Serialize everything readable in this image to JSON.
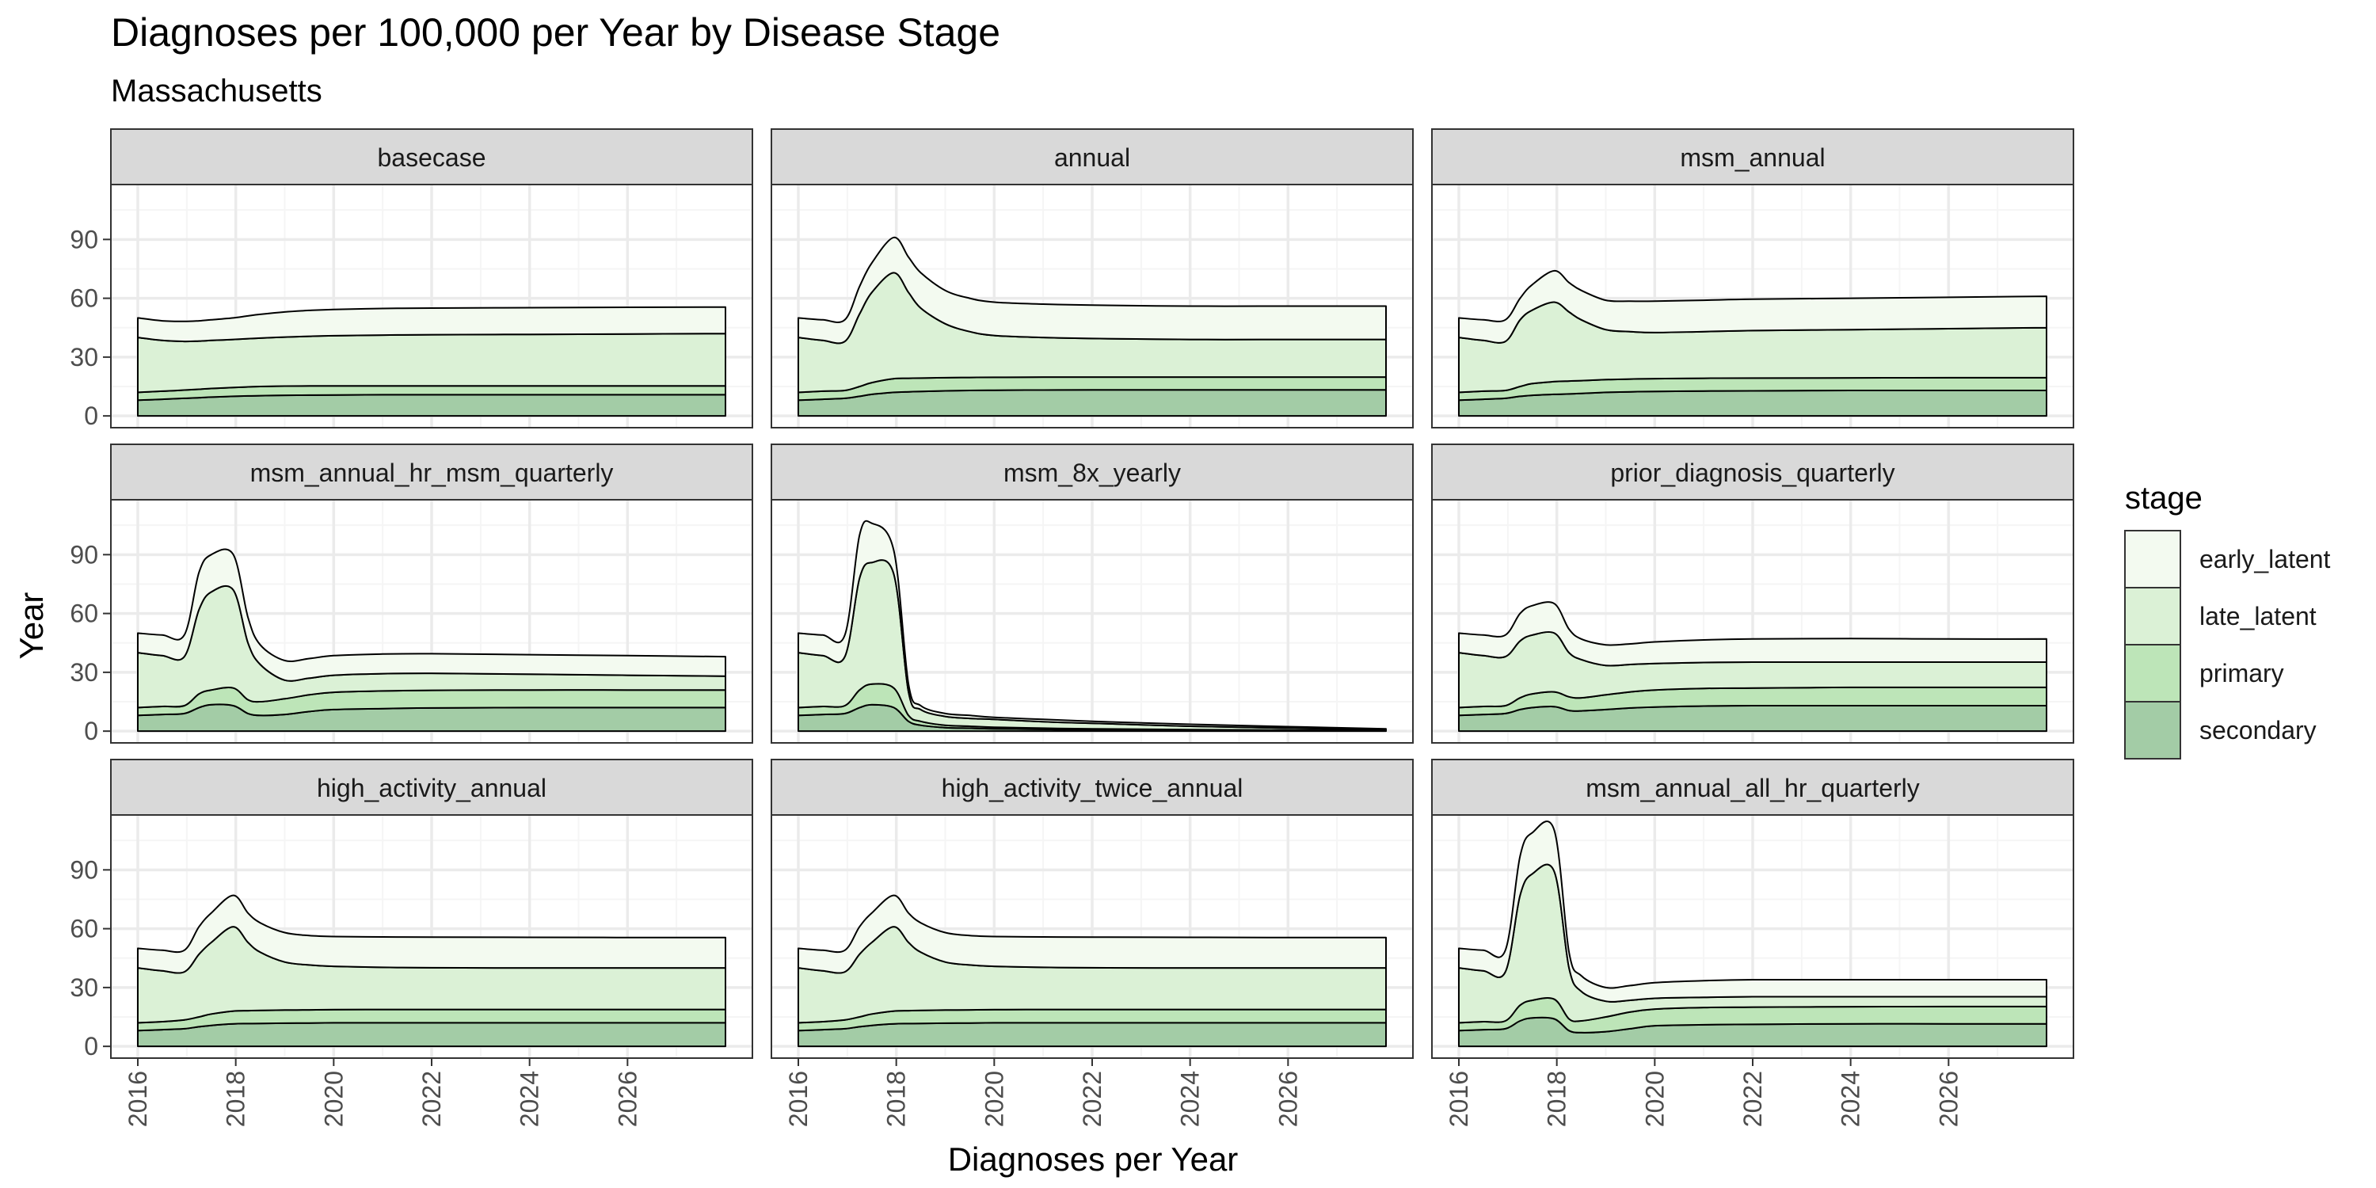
{
  "colors": {
    "early_latent": "#f3faf0",
    "late_latent": "#dbf1d6",
    "primary": "#bde5b8",
    "secondary": "#a3cca6",
    "strip_bg": "#d9d9d9",
    "grid_major": "#ebebeb",
    "grid_minor": "#f5f5f5",
    "outline": "#000000",
    "tick_text": "#4d4d4d"
  },
  "chart_data": {
    "type": "area",
    "stacked": true,
    "title": "Diagnoses per 100,000 per Year by Disease Stage",
    "subtitle": "Massachusetts",
    "xlabel": "Diagnoses per Year",
    "ylabel": "Year",
    "xlim": [
      2015.45,
      2028.55
    ],
    "ylim": [
      -6,
      118
    ],
    "x_ticks": [
      2016,
      2018,
      2020,
      2022,
      2024,
      2026
    ],
    "x_tick_labels": [
      "2016",
      "2018",
      "2020",
      "2022",
      "2024",
      "2026"
    ],
    "y_ticks": [
      0,
      30,
      60,
      90
    ],
    "y_tick_labels": [
      "0",
      "30",
      "60",
      "90"
    ],
    "grid": true,
    "legend": {
      "title": "stage",
      "position": "right",
      "entries": [
        "early_latent",
        "late_latent",
        "primary",
        "secondary"
      ]
    },
    "stack_order_bottom_to_top": [
      "secondary",
      "primary",
      "late_latent",
      "early_latent"
    ],
    "x": [
      2016,
      2016.5,
      2016.95,
      2017.25,
      2017.5,
      2017.95,
      2018.25,
      2018.5,
      2019,
      2019.5,
      2020,
      2021,
      2022,
      2024,
      2026,
      2028
    ],
    "panels": [
      {
        "title": "basecase",
        "cumulative": {
          "secondary": [
            8,
            8.5,
            9,
            9.3,
            9.6,
            10,
            10.2,
            10.3,
            10.5,
            10.6,
            10.7,
            10.8,
            10.8,
            10.8,
            10.8,
            10.8
          ],
          "primary": [
            12,
            12.6,
            13.2,
            13.6,
            14,
            14.5,
            14.8,
            15,
            15.2,
            15.3,
            15.3,
            15.3,
            15.3,
            15.3,
            15.3,
            15.3
          ],
          "late_latent": [
            40,
            38.5,
            38,
            38.2,
            38.5,
            39,
            39.4,
            39.7,
            40.2,
            40.6,
            40.9,
            41.2,
            41.4,
            41.6,
            41.8,
            42
          ],
          "early_latent": [
            50,
            48.5,
            48.2,
            48.5,
            49,
            50,
            51,
            51.8,
            53,
            53.8,
            54.3,
            54.8,
            55,
            55.2,
            55.4,
            55.5
          ]
        }
      },
      {
        "title": "annual",
        "cumulative": {
          "secondary": [
            8,
            8.5,
            9,
            10,
            11,
            12,
            12.3,
            12.5,
            12.8,
            13,
            13.1,
            13.2,
            13.3,
            13.3,
            13.3,
            13.3
          ],
          "primary": [
            12,
            12.6,
            13,
            15,
            17,
            19,
            19.2,
            19.3,
            19.5,
            19.6,
            19.7,
            19.8,
            19.8,
            19.8,
            19.8,
            19.8
          ],
          "late_latent": [
            40,
            38.5,
            38,
            52,
            63,
            73,
            63,
            55,
            47,
            43,
            41,
            40,
            39.5,
            39,
            39,
            39
          ],
          "early_latent": [
            50,
            49,
            49,
            66,
            78,
            91,
            81,
            73,
            64,
            60,
            58,
            57,
            56.5,
            56,
            56,
            56
          ]
        }
      },
      {
        "title": "msm_annual",
        "cumulative": {
          "secondary": [
            8,
            8.5,
            9,
            10,
            10.5,
            11,
            11.2,
            11.5,
            12,
            12.3,
            12.5,
            12.7,
            12.8,
            13,
            13,
            13
          ],
          "primary": [
            12,
            12.6,
            13,
            15,
            16.5,
            17.5,
            17.8,
            18,
            18.5,
            18.8,
            19,
            19.2,
            19.3,
            19.4,
            19.5,
            19.5
          ],
          "late_latent": [
            40,
            38.5,
            38,
            49,
            54,
            58,
            53,
            49,
            44,
            43,
            42.5,
            43,
            43.5,
            44,
            44.5,
            45
          ],
          "early_latent": [
            50,
            49,
            49,
            60,
            67,
            74,
            68,
            64,
            59,
            58.5,
            58.5,
            59,
            59.5,
            60,
            60.5,
            61
          ]
        }
      },
      {
        "title": "msm_annual_hr_msm_quarterly",
        "cumulative": {
          "secondary": [
            8,
            8.5,
            9,
            12,
            13.5,
            13,
            9,
            8,
            8.5,
            10,
            11,
            11.5,
            11.8,
            12,
            12,
            12
          ],
          "primary": [
            12,
            12.6,
            13,
            19,
            21,
            22,
            16,
            15,
            16.5,
            18.5,
            19.8,
            20.5,
            20.8,
            21,
            21,
            21
          ],
          "late_latent": [
            40,
            38.5,
            38,
            62,
            71,
            72,
            45,
            34,
            26,
            27,
            28.5,
            29.3,
            29.5,
            29,
            28.5,
            28
          ],
          "early_latent": [
            50,
            49,
            49,
            81,
            90,
            90,
            58,
            44,
            36,
            37,
            38.5,
            39.3,
            39.5,
            39,
            38.5,
            38
          ]
        }
      },
      {
        "title": "msm_8x_yearly",
        "cumulative": {
          "secondary": [
            8,
            8.5,
            9,
            12,
            13.5,
            12,
            5,
            3,
            1.8,
            1.5,
            1.2,
            0.9,
            0.7,
            0.4,
            0.2,
            0.1
          ],
          "primary": [
            12,
            12.6,
            13,
            21,
            24,
            22,
            8,
            5,
            3,
            2.5,
            2,
            1.5,
            1.2,
            0.8,
            0.5,
            0.3
          ],
          "late_latent": [
            40,
            38.5,
            38,
            78,
            86,
            80,
            20,
            11,
            7.5,
            6.5,
            6,
            4.8,
            4,
            2.5,
            1.5,
            0.8
          ],
          "early_latent": [
            50,
            49,
            49,
            100,
            106,
            92,
            24,
            13,
            9,
            8,
            7,
            6,
            5,
            3.5,
            2.3,
            1.2
          ]
        }
      },
      {
        "title": "prior_diagnosis_quarterly",
        "cumulative": {
          "secondary": [
            8,
            8.5,
            9,
            11,
            12,
            12.5,
            10.5,
            10.3,
            11,
            11.8,
            12.3,
            12.8,
            13,
            13,
            13,
            13
          ],
          "primary": [
            12,
            12.6,
            13,
            17,
            19,
            20,
            17.5,
            17,
            18.5,
            20,
            21,
            21.8,
            22,
            22.3,
            22.3,
            22.3
          ],
          "late_latent": [
            40,
            38.5,
            38,
            46,
            49,
            50,
            40,
            36.5,
            33.5,
            34,
            34.5,
            35,
            35.2,
            35.2,
            35.2,
            35.2
          ],
          "early_latent": [
            50,
            49,
            49,
            60,
            64,
            65,
            52,
            47,
            44,
            44.5,
            45.5,
            46.5,
            47,
            47.2,
            47,
            47
          ]
        }
      },
      {
        "title": "high_activity_annual",
        "cumulative": {
          "secondary": [
            8,
            8.5,
            9,
            10,
            10.7,
            11.5,
            11.6,
            11.7,
            11.8,
            11.9,
            12,
            12,
            12,
            12,
            12,
            12
          ],
          "primary": [
            12,
            12.6,
            13.5,
            15,
            16.5,
            18,
            18.2,
            18.3,
            18.5,
            18.6,
            18.7,
            18.8,
            18.8,
            18.8,
            18.8,
            18.8
          ],
          "late_latent": [
            40,
            38.5,
            38,
            47,
            53,
            61,
            53,
            48,
            43,
            41.5,
            40.8,
            40.3,
            40.1,
            40,
            40,
            40
          ],
          "early_latent": [
            50,
            49,
            49,
            61,
            68,
            77,
            68,
            63,
            58,
            56.5,
            56,
            55.8,
            55.7,
            55.6,
            55.5,
            55.5
          ]
        }
      },
      {
        "title": "high_activity_twice_annual",
        "cumulative": {
          "secondary": [
            8,
            8.5,
            9,
            10,
            10.7,
            11.5,
            11.6,
            11.7,
            11.8,
            11.9,
            12,
            12,
            12,
            12,
            12,
            12
          ],
          "primary": [
            12,
            12.6,
            13.5,
            15,
            16.5,
            18,
            18.2,
            18.3,
            18.5,
            18.6,
            18.7,
            18.8,
            18.8,
            18.8,
            18.8,
            18.8
          ],
          "late_latent": [
            40,
            38.5,
            38,
            47,
            53,
            61,
            53,
            48,
            43,
            41.5,
            40.8,
            40.3,
            40.1,
            40,
            40,
            40
          ],
          "early_latent": [
            50,
            49,
            49,
            61,
            68,
            77,
            68,
            63,
            58,
            56.5,
            56,
            55.8,
            55.7,
            55.6,
            55.5,
            55.5
          ]
        }
      },
      {
        "title": "msm_annual_all_hr_quarterly",
        "cumulative": {
          "secondary": [
            8,
            8.5,
            9,
            13,
            14.5,
            14,
            8,
            7,
            7.5,
            9,
            10.5,
            11,
            11.2,
            11.5,
            11.5,
            11.5
          ],
          "primary": [
            12,
            12.6,
            13,
            21,
            23.5,
            24,
            14,
            13,
            15,
            17.5,
            19,
            19.8,
            20,
            20.2,
            20.3,
            20.3
          ],
          "late_latent": [
            40,
            38.5,
            38,
            77,
            88,
            89,
            40,
            28,
            23,
            23.5,
            24.5,
            25,
            25.3,
            25.3,
            25.3,
            25.3
          ],
          "early_latent": [
            50,
            49,
            49,
            97,
            109,
            110,
            48,
            36,
            30,
            31,
            32.5,
            33.5,
            34,
            34,
            34,
            34
          ]
        }
      }
    ]
  }
}
